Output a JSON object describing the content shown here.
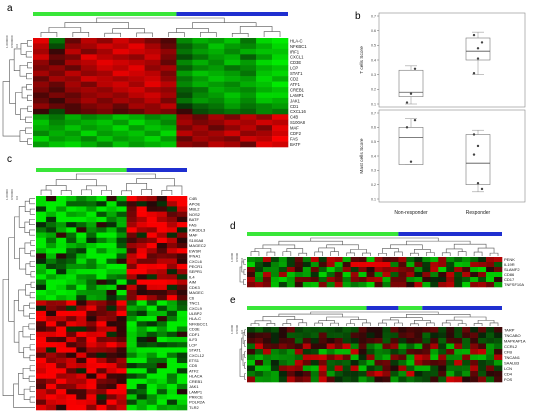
{
  "panels": {
    "a": {
      "letter": "a",
      "genes": [
        "HLA-C",
        "NFKBC1",
        "IRF1",
        "CXCL1",
        "CD3E",
        "LCP",
        "STAT1",
        "CD2",
        "ATF1",
        "CREB1",
        "LAMP1",
        "JAK1",
        "CD1",
        "CXCL16",
        "C4B",
        "S100A8",
        "MAF",
        "CDF2",
        "FAS",
        "BATF"
      ],
      "scale_labels": [
        "1.000000",
        "0.500000",
        "0.0"
      ]
    },
    "b": {
      "letter": "b",
      "categories": [
        "Non-responder",
        "Responder"
      ],
      "top": {
        "ylabel": "T cells Score",
        "ticks": [
          "0.7",
          "0.6",
          "0.5",
          "0.4",
          "0.3",
          "0.2",
          "0.1"
        ]
      },
      "bottom": {
        "ylabel": "Mast cells Score",
        "ticks": [
          "0.7",
          "0.6",
          "0.5",
          "0.4",
          "0.3",
          "0.2",
          "0.1"
        ]
      }
    },
    "c": {
      "letter": "c",
      "genes": [
        "C4B",
        "APOE",
        "MBL2",
        "NOS2",
        "BATF",
        "FAS",
        "KIR3DL3",
        "MAF",
        "S100A8",
        "MAGEC2",
        "EWSR",
        "IFNA1",
        "CXCL6",
        "PECR1",
        "SEPR1",
        "IL4",
        "AIM",
        "CDK3",
        "MAGEC",
        "C6",
        "TNC1",
        "CXCL9",
        "ULBP2",
        "HLA-C",
        "NFKBCC1",
        "CD3E",
        "CDF1",
        "ILF3",
        "LCP",
        "STAT1",
        "CXCL12",
        "ETS1",
        "CD5",
        "ATF2",
        "HLACA",
        "CREB1",
        "JAK1",
        "LAMP1",
        "PRKCE",
        "POLR2A",
        "TLR2"
      ],
      "scale_labels": [
        "1.00000",
        "0.50000",
        "0.0"
      ]
    },
    "d": {
      "letter": "d",
      "genes": [
        "PENK",
        "IL19R",
        "SLAMF2",
        "CD86",
        "CD17",
        "TNFSF10A"
      ],
      "scale_labels": [
        "1.0000",
        "0.5000",
        "0.0"
      ]
    },
    "e": {
      "letter": "e",
      "genes": [
        "TARP",
        "TNCABO",
        "MAPKAP1A",
        "CCRL2",
        "CFB",
        "TNCAN1",
        "SAALB3",
        "LCN",
        "CD4",
        "FOS"
      ],
      "scale_labels": [
        "1.0000",
        "0.5000",
        "0.0"
      ]
    }
  },
  "colors": {
    "green_bar": "#39e639",
    "blue_bar": "#1f2fd0",
    "red": "#e01010",
    "green": "#10c010",
    "dark": "#000000"
  },
  "chart_data": [
    {
      "type": "heatmap",
      "panel": "a",
      "rows": [
        "HLA-C",
        "NFKBC1",
        "IRF1",
        "CXCL1",
        "CD3E",
        "LCP",
        "STAT1",
        "CD2",
        "ATF1",
        "CREB1",
        "LAMP1",
        "JAK1",
        "CD1",
        "CXCL16",
        "C4B",
        "S100A8",
        "MAF",
        "CDF2",
        "FAS",
        "BATF"
      ],
      "column_groups": [
        {
          "color": "green",
          "count": 9
        },
        {
          "color": "blue",
          "count": 7
        }
      ],
      "values": [
        [
          0.9,
          -0.4,
          0.3,
          0.7,
          0.5,
          0.8,
          0.6,
          0.4,
          0.2,
          -0.5,
          -0.7,
          -0.6,
          -0.8,
          -0.4,
          -0.9,
          -1.0
        ],
        [
          0.7,
          -0.2,
          0.5,
          0.6,
          0.8,
          0.7,
          0.9,
          0.6,
          0.3,
          -0.3,
          -0.5,
          -0.8,
          -0.6,
          -0.5,
          -0.7,
          -0.9
        ],
        [
          0.6,
          0.1,
          0.7,
          0.4,
          0.6,
          0.9,
          0.8,
          0.7,
          0.5,
          -0.4,
          -0.6,
          -0.7,
          -0.5,
          -0.7,
          -0.8,
          -0.8
        ],
        [
          0.8,
          0.3,
          0.4,
          0.9,
          0.7,
          0.6,
          0.5,
          0.8,
          0.4,
          -0.2,
          -0.4,
          -0.6,
          -0.7,
          -0.3,
          -0.6,
          -0.9
        ],
        [
          0.5,
          0.2,
          0.6,
          0.7,
          0.9,
          0.8,
          0.7,
          0.6,
          0.3,
          -0.5,
          -0.7,
          -0.5,
          -0.8,
          -0.6,
          -0.9,
          -1.0
        ],
        [
          0.4,
          0.5,
          0.3,
          0.6,
          0.8,
          0.7,
          0.9,
          0.5,
          0.6,
          -0.3,
          -0.5,
          -0.6,
          -0.4,
          -0.5,
          -0.7,
          -0.8
        ],
        [
          0.6,
          0.4,
          0.7,
          0.5,
          0.6,
          0.9,
          0.8,
          0.7,
          0.4,
          -0.6,
          -0.8,
          -0.7,
          -0.6,
          -0.4,
          -0.8,
          -0.9
        ],
        [
          0.3,
          0.6,
          0.5,
          0.8,
          0.7,
          0.6,
          0.7,
          0.8,
          0.5,
          -0.4,
          -0.6,
          -0.8,
          -0.7,
          -0.6,
          -0.9,
          -0.7
        ],
        [
          0.5,
          0.3,
          0.6,
          0.4,
          0.7,
          0.8,
          0.6,
          0.9,
          0.7,
          -0.5,
          -0.7,
          -0.6,
          -0.5,
          -0.7,
          -0.8,
          -1.0
        ],
        [
          0.4,
          0.2,
          0.5,
          0.6,
          0.5,
          0.7,
          0.8,
          0.6,
          0.5,
          -0.3,
          -0.4,
          -0.7,
          -0.6,
          -0.5,
          -0.7,
          -0.8
        ],
        [
          0.2,
          0.4,
          0.3,
          0.5,
          0.6,
          0.5,
          0.7,
          0.8,
          0.6,
          -0.2,
          -0.5,
          -0.6,
          -0.8,
          -0.6,
          -0.9,
          -0.9
        ],
        [
          0.3,
          0.1,
          0.4,
          0.6,
          0.4,
          0.6,
          0.5,
          0.7,
          0.4,
          -0.4,
          -0.6,
          -0.5,
          -0.7,
          -0.5,
          -0.8,
          -0.7
        ],
        [
          0.5,
          0.3,
          0.2,
          0.4,
          0.5,
          0.3,
          0.6,
          0.5,
          0.7,
          -0.1,
          -0.3,
          -0.4,
          -0.6,
          -0.4,
          -0.5,
          -0.6
        ],
        [
          0.1,
          -0.2,
          0.2,
          0.3,
          0.4,
          0.2,
          0.3,
          0.5,
          0.4,
          0.1,
          -0.2,
          -0.3,
          -0.4,
          -0.3,
          -0.5,
          -0.4
        ],
        [
          -0.6,
          -0.4,
          -0.7,
          -0.5,
          -0.6,
          -0.8,
          -0.7,
          -0.5,
          -0.6,
          0.5,
          0.3,
          0.6,
          0.4,
          0.7,
          0.5,
          0.9
        ],
        [
          -0.8,
          -0.5,
          -0.6,
          -0.7,
          -0.8,
          -0.6,
          -0.9,
          -0.7,
          -0.5,
          0.6,
          0.4,
          0.5,
          0.7,
          0.6,
          0.8,
          0.7
        ],
        [
          -0.7,
          -0.6,
          -0.8,
          -0.6,
          -0.7,
          -0.9,
          -0.6,
          -0.8,
          -0.7,
          0.4,
          0.6,
          0.3,
          0.5,
          0.7,
          0.4,
          0.9
        ],
        [
          -0.5,
          -0.7,
          -0.6,
          -0.9,
          -0.6,
          -0.7,
          -0.8,
          -0.6,
          -0.9,
          0.7,
          0.5,
          0.6,
          0.8,
          0.5,
          0.6,
          0.8
        ],
        [
          -0.9,
          -0.6,
          -0.7,
          -0.5,
          -0.8,
          -0.6,
          -0.7,
          -0.9,
          -0.6,
          0.3,
          0.6,
          0.5,
          0.4,
          0.8,
          0.7,
          1.0
        ],
        [
          -0.6,
          -0.8,
          -0.9,
          -0.7,
          -0.5,
          -0.8,
          -0.6,
          -0.7,
          -0.8,
          0.5,
          0.4,
          0.7,
          0.6,
          0.3,
          0.9,
          0.8
        ]
      ],
      "scale": "-1 (green) to 1 (red)"
    },
    {
      "type": "scatter",
      "panel": "b",
      "title": "",
      "ylabel": "T cells Score",
      "categories": [
        "Non-responder",
        "Responder"
      ],
      "ylim": [
        0.1,
        0.7
      ],
      "box": [
        {
          "category": "Non-responder",
          "q1": 0.15,
          "median": 0.18,
          "q3": 0.33,
          "min": 0.1,
          "max": 0.36
        },
        {
          "category": "Responder",
          "q1": 0.4,
          "median": 0.46,
          "q3": 0.55,
          "min": 0.3,
          "max": 0.59
        }
      ],
      "points": [
        {
          "category": "Non-responder",
          "value": 0.11
        },
        {
          "category": "Non-responder",
          "value": 0.17
        },
        {
          "category": "Non-responder",
          "value": 0.34
        },
        {
          "category": "Responder",
          "value": 0.31
        },
        {
          "category": "Responder",
          "value": 0.48
        },
        {
          "category": "Responder",
          "value": 0.52
        },
        {
          "category": "Responder",
          "value": 0.57
        },
        {
          "category": "Responder",
          "value": 0.41
        }
      ]
    },
    {
      "type": "scatter",
      "panel": "b",
      "title": "",
      "ylabel": "Mast cells Score",
      "categories": [
        "Non-responder",
        "Responder"
      ],
      "ylim": [
        0.1,
        0.7
      ],
      "box": [
        {
          "category": "Non-responder",
          "q1": 0.34,
          "median": 0.53,
          "q3": 0.6,
          "min": 0.34,
          "max": 0.66
        },
        {
          "category": "Responder",
          "q1": 0.2,
          "median": 0.35,
          "q3": 0.55,
          "min": 0.15,
          "max": 0.58
        }
      ],
      "points": [
        {
          "category": "Non-responder",
          "value": 0.6
        },
        {
          "category": "Non-responder",
          "value": 0.36
        },
        {
          "category": "Non-responder",
          "value": 0.65
        },
        {
          "category": "Responder",
          "value": 0.55
        },
        {
          "category": "Responder",
          "value": 0.21
        },
        {
          "category": "Responder",
          "value": 0.17
        },
        {
          "category": "Responder",
          "value": 0.41
        },
        {
          "category": "Responder",
          "value": 0.47
        }
      ]
    },
    {
      "type": "heatmap",
      "panel": "c",
      "rows": [
        "C4B",
        "APOE",
        "MBL2",
        "NOS2",
        "BATF",
        "FAS",
        "KIR3DL3",
        "MAF",
        "S100A8",
        "MAGEC2",
        "EWSR",
        "IFNA1",
        "CXCL6",
        "PECR1",
        "SEPR1",
        "IL4",
        "AIM",
        "CDK3",
        "MAGEC",
        "C6",
        "TNC1",
        "CXCL9",
        "ULBP2",
        "HLA-C",
        "NFKBCC1",
        "CD3E",
        "CDF1",
        "ILF3",
        "LCP",
        "STAT1",
        "CXCL12",
        "ETS1",
        "CD5",
        "ATF2",
        "HLACA",
        "CREB1",
        "JAK1",
        "LAMP1",
        "PRKCE",
        "POLR2A",
        "TLR2"
      ],
      "column_groups": [
        {
          "color": "green",
          "count": 9
        },
        {
          "color": "blue",
          "count": 6
        }
      ],
      "values": "pattern: top rows green in responders/red in non-responders; bottom rows red in responders, green in non-responders"
    },
    {
      "type": "heatmap",
      "panel": "d",
      "rows": [
        "PENK",
        "IL19R",
        "SLAMF2",
        "CD86",
        "CD17",
        "TNFSF10A"
      ],
      "column_groups": [
        {
          "color": "green",
          "count": 19
        },
        {
          "color": "blue",
          "count": 13
        }
      ]
    },
    {
      "type": "heatmap",
      "panel": "e",
      "rows": [
        "TARP",
        "TNCABO",
        "MAPKAP1A",
        "CCRL2",
        "CFB",
        "TNCAN1",
        "SAALB3",
        "LCN",
        "CD4",
        "FOS"
      ],
      "column_groups": [
        {
          "color": "green",
          "count": 15
        },
        {
          "color": "blue",
          "count": 4
        },
        {
          "color": "green",
          "count": 3
        },
        {
          "color": "blue",
          "count": 10
        }
      ]
    }
  ]
}
